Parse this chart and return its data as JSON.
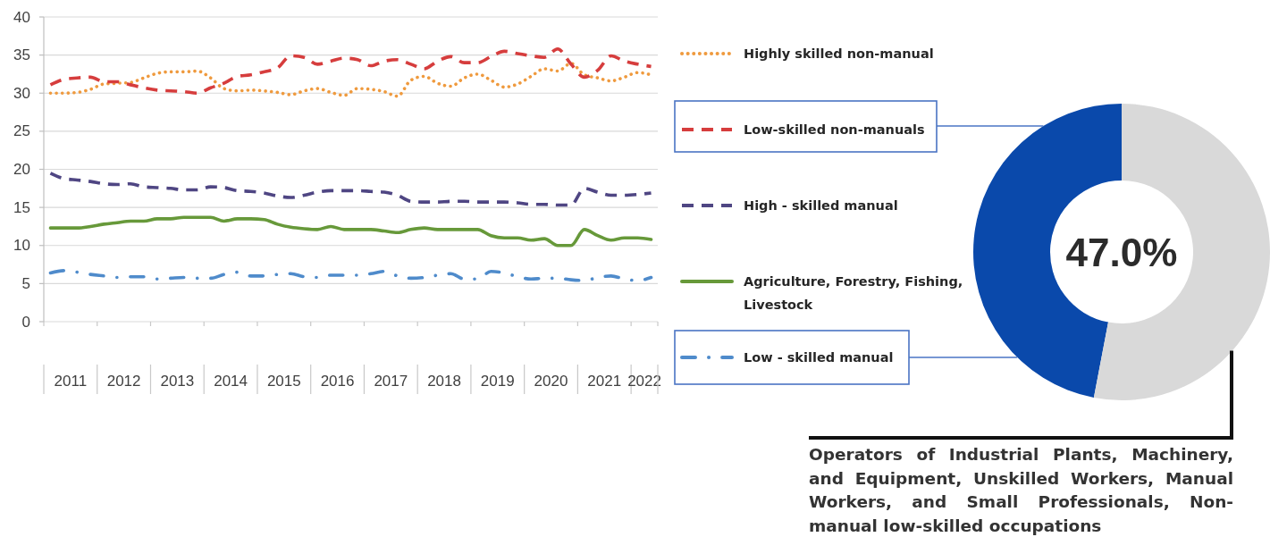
{
  "chart_data": [
    {
      "type": "line",
      "legend": "right",
      "grid": "y",
      "x": [
        2011.125,
        2011.375,
        2011.625,
        2011.875,
        2012.125,
        2012.375,
        2012.625,
        2012.875,
        2013.125,
        2013.375,
        2013.625,
        2013.875,
        2014.125,
        2014.375,
        2014.625,
        2014.875,
        2015.125,
        2015.375,
        2015.625,
        2015.875,
        2016.125,
        2016.375,
        2016.625,
        2016.875,
        2017.125,
        2017.375,
        2017.625,
        2017.875,
        2018.125,
        2018.375,
        2018.625,
        2018.875,
        2019.125,
        2019.375,
        2019.625,
        2019.875,
        2020.125,
        2020.375,
        2020.625,
        2020.875,
        2021.125,
        2021.375,
        2021.625,
        2021.875,
        2022.125,
        2022.375
      ],
      "xlim": [
        2011,
        2022.5
      ],
      "xticks": [
        {
          "value": 2011,
          "label": null
        },
        {
          "value": 2011.5,
          "label": "2011"
        },
        {
          "value": 2012,
          "label": null
        },
        {
          "value": 2012.5,
          "label": "2012"
        },
        {
          "value": 2013,
          "label": null
        },
        {
          "value": 2013.5,
          "label": "2013"
        },
        {
          "value": 2014,
          "label": null
        },
        {
          "value": 2014.5,
          "label": "2014"
        },
        {
          "value": 2015,
          "label": null
        },
        {
          "value": 2015.5,
          "label": "2015"
        },
        {
          "value": 2016,
          "label": null
        },
        {
          "value": 2016.5,
          "label": "2016"
        },
        {
          "value": 2017,
          "label": null
        },
        {
          "value": 2017.5,
          "label": "2017"
        },
        {
          "value": 2018,
          "label": null
        },
        {
          "value": 2018.5,
          "label": "2018"
        },
        {
          "value": 2019,
          "label": null
        },
        {
          "value": 2019.5,
          "label": "2019"
        },
        {
          "value": 2020,
          "label": null
        },
        {
          "value": 2020.5,
          "label": "2020"
        },
        {
          "value": 2021,
          "label": null
        },
        {
          "value": 2021.5,
          "label": "2021"
        },
        {
          "value": 2022,
          "label": null
        },
        {
          "value": 2022.25,
          "label": "2022"
        },
        {
          "value": 2022.5,
          "label": null
        }
      ],
      "ylim": [
        0,
        40
      ],
      "yticks": [
        0,
        5,
        10,
        15,
        20,
        25,
        30,
        35,
        40
      ],
      "series": [
        {
          "name": "Highly skilled non-manual",
          "color": "#ef9a3e",
          "line_style": "dotted",
          "values": [
            30.0,
            30.0,
            30.1,
            30.5,
            31.2,
            31.3,
            31.4,
            32.0,
            32.6,
            32.8,
            32.8,
            32.9,
            32.0,
            30.6,
            30.3,
            30.4,
            30.3,
            30.1,
            29.8,
            30.3,
            30.6,
            30.1,
            29.7,
            30.6,
            30.5,
            30.2,
            29.6,
            31.7,
            32.2,
            31.3,
            30.9,
            32.0,
            32.5,
            31.7,
            30.8,
            31.2,
            32.2,
            33.2,
            32.9,
            33.9,
            32.4,
            32.0,
            31.6,
            32.1,
            32.7,
            32.4
          ]
        },
        {
          "name": "Low-skilled non-manuals",
          "color": "#d63d3d",
          "line_style": "dashed",
          "values": [
            31.1,
            31.8,
            32.0,
            32.1,
            31.5,
            31.5,
            31.1,
            30.7,
            30.4,
            30.3,
            30.2,
            30.0,
            30.7,
            31.3,
            32.2,
            32.4,
            32.8,
            33.3,
            34.9,
            34.7,
            33.8,
            34.2,
            34.6,
            34.4,
            33.6,
            34.2,
            34.4,
            33.8,
            33.2,
            34.2,
            34.8,
            34.0,
            34.0,
            34.8,
            35.5,
            35.2,
            34.9,
            34.7,
            35.8,
            33.8,
            32.1,
            33.0,
            34.9,
            34.2,
            33.8,
            33.5
          ]
        },
        {
          "name": "High - skilled manual",
          "color": "#4f4683",
          "line_style": "dashed",
          "values": [
            19.5,
            18.8,
            18.6,
            18.4,
            18.1,
            18.0,
            18.1,
            17.7,
            17.6,
            17.5,
            17.3,
            17.3,
            17.7,
            17.6,
            17.2,
            17.1,
            16.9,
            16.5,
            16.3,
            16.6,
            17.0,
            17.2,
            17.2,
            17.2,
            17.1,
            17.0,
            16.6,
            15.8,
            15.7,
            15.7,
            15.8,
            15.8,
            15.7,
            15.7,
            15.7,
            15.6,
            15.4,
            15.4,
            15.3,
            15.3,
            17.5,
            17.0,
            16.6,
            16.6,
            16.7,
            16.9
          ]
        },
        {
          "name": "Agriculture, Forestry, Fishing, Livestock",
          "color": "#67993a",
          "line_style": "solid",
          "values": [
            12.3,
            12.3,
            12.3,
            12.5,
            12.8,
            13.0,
            13.2,
            13.2,
            13.5,
            13.5,
            13.7,
            13.7,
            13.7,
            13.2,
            13.5,
            13.5,
            13.4,
            12.8,
            12.4,
            12.2,
            12.1,
            12.5,
            12.1,
            12.1,
            12.1,
            11.9,
            11.7,
            12.1,
            12.3,
            12.1,
            12.1,
            12.1,
            12.1,
            11.3,
            11.0,
            11.0,
            10.7,
            10.9,
            10.0,
            10.0,
            12.1,
            11.3,
            10.7,
            11.0,
            11.0,
            10.8
          ]
        },
        {
          "name": "Low - skilled manual",
          "color": "#4f8bcb",
          "line_style": "dashdot",
          "values": [
            6.4,
            6.7,
            6.5,
            6.2,
            6.0,
            5.8,
            5.9,
            5.9,
            5.6,
            5.7,
            5.8,
            5.7,
            5.7,
            6.2,
            6.5,
            6.0,
            6.0,
            6.2,
            6.3,
            5.9,
            5.8,
            6.1,
            6.1,
            6.1,
            6.3,
            6.6,
            6.0,
            5.7,
            5.8,
            6.1,
            6.3,
            5.6,
            5.6,
            6.6,
            6.4,
            5.9,
            5.6,
            5.7,
            5.7,
            5.5,
            5.4,
            5.8,
            6.0,
            5.6,
            5.4,
            5.8
          ]
        }
      ]
    },
    {
      "type": "donut",
      "categories": [
        null,
        "Operators of Industrial Plants, Machinery, and Equipment, Unskilled Workers, Manual Workers, and Small Professionals, Non-manual low-skilled occupations"
      ],
      "values": [
        47.0,
        53.0
      ],
      "colors": [
        "#0a49ab",
        "#d9d9d9"
      ],
      "annotations": [
        "47.0%"
      ]
    }
  ]
}
